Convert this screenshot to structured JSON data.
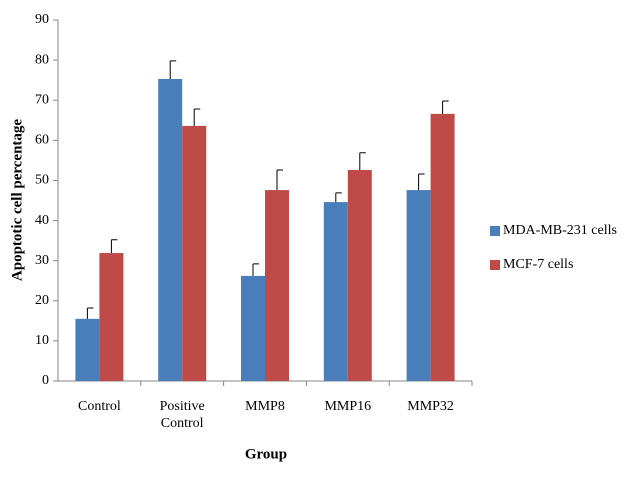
{
  "chart_data": {
    "type": "bar",
    "y_label": "Apoptotic cell percentage",
    "x_label": "Group",
    "categories": [
      "Control",
      "Positive Control",
      "MMP8",
      "MMP16",
      "MMP32"
    ],
    "series": [
      {
        "name": "MDA-MB-231 cells",
        "color": "#4a7ebb",
        "values": [
          15.5,
          75.3,
          26.2,
          44.6,
          47.6
        ],
        "errors": [
          2.7,
          4.5,
          3.0,
          2.3,
          4.0
        ]
      },
      {
        "name": "MCF-7 cells",
        "color": "#be4b48",
        "values": [
          31.9,
          63.6,
          47.6,
          52.6,
          66.6
        ],
        "errors": [
          3.3,
          4.2,
          5.0,
          4.3,
          3.2
        ]
      }
    ],
    "ylim": [
      0,
      90
    ],
    "yticks": [
      0,
      10,
      20,
      30,
      40,
      50,
      60,
      70,
      80,
      90
    ],
    "grid": false,
    "legend": "right"
  }
}
